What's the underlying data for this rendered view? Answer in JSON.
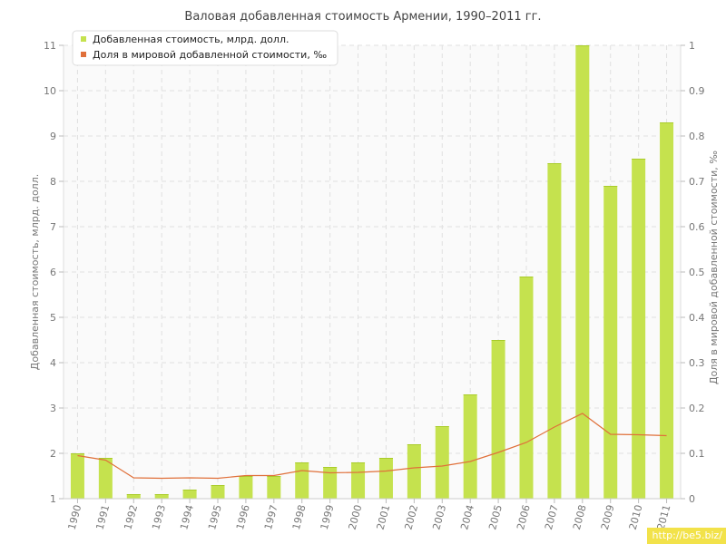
{
  "watermark": "http://be5.biz/",
  "colors": {
    "bar": "#c5e24e",
    "bar_edge": "#a9cc2a",
    "line": "#e0703a",
    "grid": "#e0e0e0",
    "plot_bg": "#fafafa",
    "axis_text": "#777777",
    "title_text": "#444444"
  },
  "chart_data": {
    "type": "bar",
    "title": "Валовая добавленная стоимость Армении, 1990–2011 гг.",
    "categories": [
      "1990",
      "1991",
      "1992",
      "1993",
      "1994",
      "1995",
      "1996",
      "1997",
      "1998",
      "1999",
      "2000",
      "2001",
      "2002",
      "2003",
      "2004",
      "2005",
      "2006",
      "2007",
      "2008",
      "2009",
      "2010",
      "2011"
    ],
    "series": [
      {
        "name": "Добавленная стоимость, млрд. долл.",
        "type": "bar",
        "axis": "left",
        "values": [
          2.0,
          1.9,
          1.1,
          1.1,
          1.2,
          1.3,
          1.5,
          1.5,
          1.8,
          1.7,
          1.8,
          1.9,
          2.2,
          2.6,
          3.3,
          4.5,
          5.9,
          8.4,
          11.0,
          7.9,
          8.5,
          9.3
        ]
      },
      {
        "name": "Доля в мировой добавленной стоимости, ‰",
        "type": "line",
        "axis": "right",
        "values": [
          0.095,
          0.085,
          0.046,
          0.045,
          0.046,
          0.045,
          0.051,
          0.051,
          0.062,
          0.057,
          0.058,
          0.061,
          0.068,
          0.072,
          0.082,
          0.102,
          0.124,
          0.158,
          0.188,
          0.142,
          0.141,
          0.139
        ]
      }
    ],
    "ylabel_left": "Добавленная стоимость, млрд. долл.",
    "ylabel_right": "Доля в мировой добавленной стоимости, ‰",
    "ylim_left": [
      1,
      11
    ],
    "ylim_right": [
      0,
      1
    ],
    "yticks_left": [
      "1",
      "2",
      "3",
      "4",
      "5",
      "6",
      "7",
      "8",
      "9",
      "10",
      "11"
    ],
    "yticks_right": [
      "0",
      "0.1",
      "0.2",
      "0.3",
      "0.4",
      "0.5",
      "0.6",
      "0.7",
      "0.8",
      "0.9",
      "1"
    ],
    "grid": true,
    "legend": "top-left"
  }
}
